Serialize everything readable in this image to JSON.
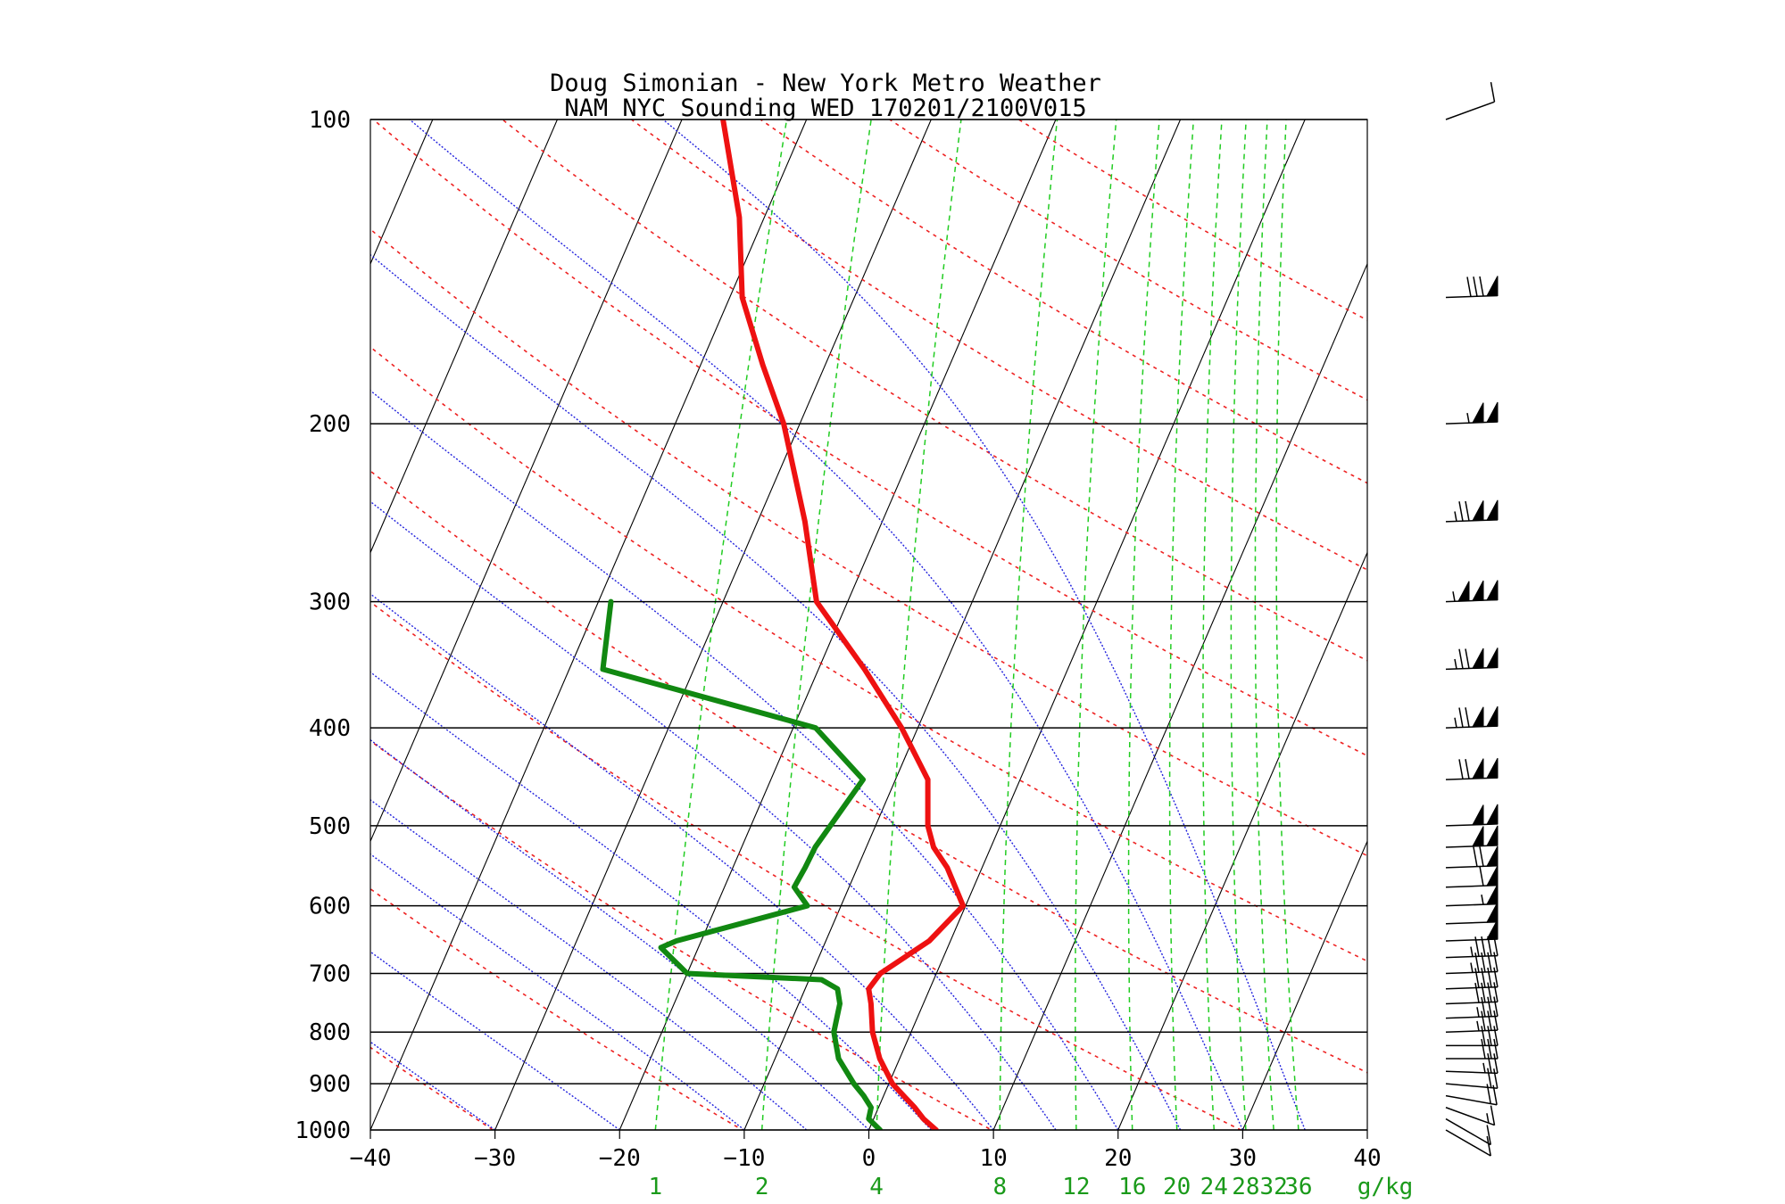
{
  "chart_data": {
    "type": "skew-t",
    "title_lines": [
      "Doug Simonian - New York Metro Weather",
      "NAM NYC Sounding  WED 170201/2100V015"
    ],
    "pressure_ticks": [
      100,
      200,
      300,
      400,
      500,
      600,
      700,
      800,
      900,
      1000
    ],
    "pressure_range": [
      1000,
      100
    ],
    "temperature_ticks": [
      -40,
      -30,
      -20,
      -10,
      0,
      10,
      20,
      30,
      40
    ],
    "temperature_tick_labels": [
      "−40",
      "−30",
      "−20",
      "−10",
      "0",
      "10",
      "20",
      "30",
      "40"
    ],
    "temperature_range": [
      -40,
      40
    ],
    "mixing_ratio_ticks": [
      1,
      2,
      4,
      8,
      12,
      16,
      20,
      24,
      28,
      32,
      36
    ],
    "mixing_ratio_tick_labels": [
      "1",
      "2",
      "4",
      "8",
      "12",
      "16",
      "20",
      "24",
      "28",
      "32",
      "36"
    ],
    "mixing_ratio_unit": "g/kg",
    "colors": {
      "temperature": "#ee1111",
      "dewpoint": "#118811",
      "isotherm": "#000000",
      "dry_adiabat": "#ee2222",
      "moist_adiabat": "#2222dd",
      "mixing_ratio": "#22cc22",
      "isobar": "#000000"
    },
    "temperature_profile": [
      {
        "p": 1000,
        "t": 5.4
      },
      {
        "p": 975,
        "t": 4.0
      },
      {
        "p": 950,
        "t": 2.9
      },
      {
        "p": 925,
        "t": 1.6
      },
      {
        "p": 900,
        "t": 0.3
      },
      {
        "p": 850,
        "t": -1.6
      },
      {
        "p": 800,
        "t": -3.1
      },
      {
        "p": 750,
        "t": -4.2
      },
      {
        "p": 725,
        "t": -4.9
      },
      {
        "p": 700,
        "t": -4.5
      },
      {
        "p": 650,
        "t": -1.7
      },
      {
        "p": 600,
        "t": -0.2
      },
      {
        "p": 550,
        "t": -2.8
      },
      {
        "p": 525,
        "t": -4.6
      },
      {
        "p": 500,
        "t": -5.8
      },
      {
        "p": 450,
        "t": -7.4
      },
      {
        "p": 400,
        "t": -11.3
      },
      {
        "p": 350,
        "t": -16.3
      },
      {
        "p": 300,
        "t": -22.5
      },
      {
        "p": 250,
        "t": -26.2
      },
      {
        "p": 200,
        "t": -31.3
      },
      {
        "p": 175,
        "t": -35.0
      },
      {
        "p": 150,
        "t": -39.0
      },
      {
        "p": 125,
        "t": -42.0
      },
      {
        "p": 100,
        "t": -46.7
      }
    ],
    "dewpoint_profile": [
      {
        "p": 1000,
        "t": 0.9
      },
      {
        "p": 975,
        "t": -0.4
      },
      {
        "p": 950,
        "t": -0.6
      },
      {
        "p": 925,
        "t": -1.6
      },
      {
        "p": 900,
        "t": -2.8
      },
      {
        "p": 850,
        "t": -4.9
      },
      {
        "p": 800,
        "t": -6.2
      },
      {
        "p": 750,
        "t": -6.7
      },
      {
        "p": 725,
        "t": -7.4
      },
      {
        "p": 710,
        "t": -9.0
      },
      {
        "p": 700,
        "t": -20.0
      },
      {
        "p": 660,
        "t": -23.0
      },
      {
        "p": 650,
        "t": -22.0
      },
      {
        "p": 600,
        "t": -12.7
      },
      {
        "p": 575,
        "t": -14.4
      },
      {
        "p": 550,
        "t": -14.2
      },
      {
        "p": 525,
        "t": -14.1
      },
      {
        "p": 450,
        "t": -12.6
      },
      {
        "p": 400,
        "t": -18.2
      },
      {
        "p": 350,
        "t": -37.3
      },
      {
        "p": 300,
        "t": -39.0
      }
    ],
    "wind_barbs": [
      {
        "p": 1000,
        "speed_kt": 10,
        "dir": 300
      },
      {
        "p": 975,
        "speed_kt": 10,
        "dir": 300
      },
      {
        "p": 950,
        "speed_kt": 15,
        "dir": 290
      },
      {
        "p": 925,
        "speed_kt": 20,
        "dir": 280
      },
      {
        "p": 900,
        "speed_kt": 20,
        "dir": 275
      },
      {
        "p": 875,
        "speed_kt": 25,
        "dir": 272
      },
      {
        "p": 850,
        "speed_kt": 30,
        "dir": 270
      },
      {
        "p": 825,
        "speed_kt": 30,
        "dir": 270
      },
      {
        "p": 800,
        "speed_kt": 35,
        "dir": 268
      },
      {
        "p": 775,
        "speed_kt": 35,
        "dir": 268
      },
      {
        "p": 750,
        "speed_kt": 40,
        "dir": 268
      },
      {
        "p": 725,
        "speed_kt": 40,
        "dir": 268
      },
      {
        "p": 700,
        "speed_kt": 45,
        "dir": 268
      },
      {
        "p": 675,
        "speed_kt": 45,
        "dir": 268
      },
      {
        "p": 650,
        "speed_kt": 50,
        "dir": 268
      },
      {
        "p": 625,
        "speed_kt": 50,
        "dir": 268
      },
      {
        "p": 600,
        "speed_kt": 55,
        "dir": 268
      },
      {
        "p": 575,
        "speed_kt": 60,
        "dir": 268
      },
      {
        "p": 550,
        "speed_kt": 70,
        "dir": 268
      },
      {
        "p": 525,
        "speed_kt": 100,
        "dir": 268
      },
      {
        "p": 500,
        "speed_kt": 100,
        "dir": 268
      },
      {
        "p": 450,
        "speed_kt": 120,
        "dir": 268
      },
      {
        "p": 400,
        "speed_kt": 125,
        "dir": 268
      },
      {
        "p": 350,
        "speed_kt": 125,
        "dir": 268
      },
      {
        "p": 300,
        "speed_kt": 155,
        "dir": 268
      },
      {
        "p": 250,
        "speed_kt": 125,
        "dir": 268
      },
      {
        "p": 200,
        "speed_kt": 105,
        "dir": 268
      },
      {
        "p": 150,
        "speed_kt": 80,
        "dir": 268
      },
      {
        "p": 100,
        "speed_kt": 10,
        "dir": 250
      }
    ]
  }
}
